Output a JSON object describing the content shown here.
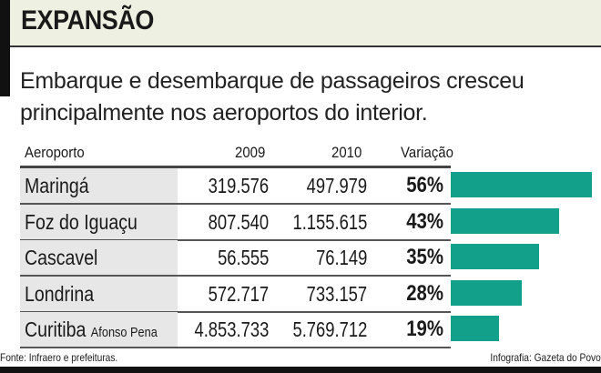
{
  "title": "EXPANSÃO",
  "subtitle_line1": "Embarque e desembarque de passageiros cresceu",
  "subtitle_line2": "principalmente nos aeroportos do interior.",
  "chart_data": {
    "type": "bar",
    "columns": [
      "Aeroporto",
      "2009",
      "2010",
      "Variação"
    ],
    "rows": [
      {
        "name": "Maringá",
        "sub": "",
        "y2009": "319.576",
        "y2010": "497.979",
        "variation": 56,
        "label": "56%"
      },
      {
        "name": "Foz do Iguaçu",
        "sub": "",
        "y2009": "807.540",
        "y2010": "1.155.615",
        "variation": 43,
        "label": "43%"
      },
      {
        "name": "Cascavel",
        "sub": "",
        "y2009": "56.555",
        "y2010": "76.149",
        "variation": 35,
        "label": "35%"
      },
      {
        "name": "Londrina",
        "sub": "",
        "y2009": "572.717",
        "y2010": "733.157",
        "variation": 28,
        "label": "28%"
      },
      {
        "name": "Curitiba",
        "sub": "Afonso Pena",
        "y2009": "4.853.733",
        "y2010": "5.769.712",
        "variation": 19,
        "label": "19%"
      }
    ],
    "bar_color": "#13a08a"
  },
  "source": "Fonte: Infraero e prefeituras.",
  "credit": "Infografia: Gazeta do Povo"
}
